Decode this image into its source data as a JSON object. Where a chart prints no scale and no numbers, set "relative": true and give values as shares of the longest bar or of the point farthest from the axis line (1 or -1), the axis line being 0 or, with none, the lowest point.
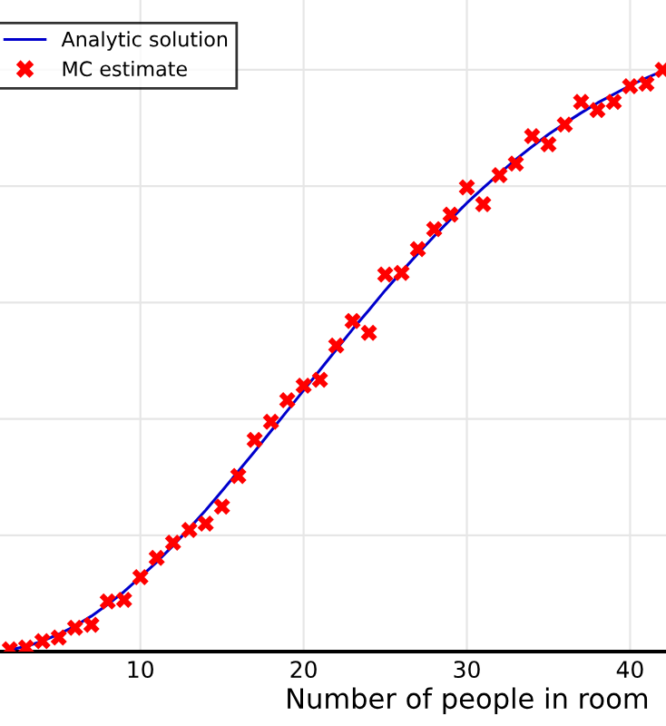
{
  "chart_data": {
    "type": "line",
    "xlabel": "Number of people in room",
    "relative": true,
    "xlim": [
      1.4,
      42.2
    ],
    "xticks": [
      10,
      20,
      30,
      40
    ],
    "tick_labels": "x",
    "grid": true,
    "legend": "top left",
    "x": [
      2,
      3,
      4,
      5,
      6,
      7,
      8,
      9,
      10,
      11,
      12,
      13,
      14,
      15,
      16,
      17,
      18,
      19,
      20,
      21,
      22,
      23,
      24,
      25,
      26,
      27,
      28,
      29,
      30,
      31,
      32,
      33,
      34,
      35,
      36,
      37,
      38,
      39,
      40,
      41,
      42
    ],
    "series": [
      {
        "name": "Analytic solution",
        "color": "#0000cc",
        "marker": "none",
        "line_style": "solid",
        "values": [
          0.003,
          0.009,
          0.018,
          0.03,
          0.044,
          0.061,
          0.081,
          0.103,
          0.128,
          0.154,
          0.182,
          0.212,
          0.243,
          0.276,
          0.31,
          0.344,
          0.379,
          0.414,
          0.449,
          0.484,
          0.519,
          0.554,
          0.587,
          0.621,
          0.653,
          0.684,
          0.714,
          0.743,
          0.771,
          0.797,
          0.822,
          0.846,
          0.868,
          0.889,
          0.908,
          0.926,
          0.943,
          0.958,
          0.973,
          0.986,
          0.998
        ]
      },
      {
        "name": "MC estimate",
        "type": "scatter",
        "color": "#ff0000",
        "marker": "cross",
        "values": [
          0.004,
          0.007,
          0.018,
          0.024,
          0.041,
          0.046,
          0.086,
          0.089,
          0.128,
          0.161,
          0.187,
          0.209,
          0.22,
          0.249,
          0.302,
          0.364,
          0.395,
          0.432,
          0.457,
          0.467,
          0.526,
          0.568,
          0.548,
          0.648,
          0.651,
          0.692,
          0.726,
          0.751,
          0.798,
          0.769,
          0.819,
          0.839,
          0.886,
          0.872,
          0.906,
          0.945,
          0.931,
          0.945,
          0.972,
          0.976,
          1.0
        ]
      }
    ]
  }
}
